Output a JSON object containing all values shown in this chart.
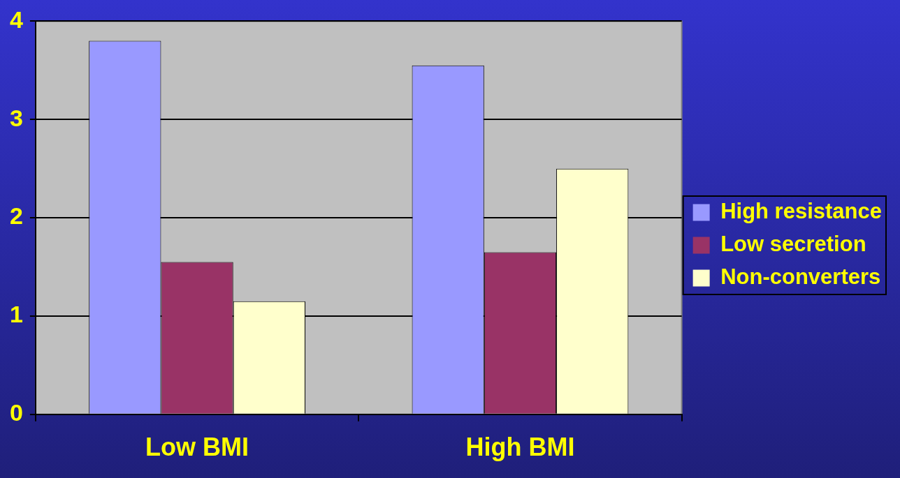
{
  "chart_data": {
    "type": "bar",
    "categories": [
      "Low BMI",
      "High BMI"
    ],
    "series": [
      {
        "name": "High resistance",
        "color": "#9999ff",
        "values": [
          3.8,
          3.55
        ]
      },
      {
        "name": "Low secretion",
        "color": "#993366",
        "values": [
          1.55,
          1.65
        ]
      },
      {
        "name": "Non-converters",
        "color": "#ffffcc",
        "values": [
          1.15,
          2.5
        ]
      }
    ],
    "ylim": [
      0,
      4
    ],
    "yticks": [
      0,
      1,
      2,
      3,
      4
    ],
    "grid": "y",
    "legend": "right"
  }
}
